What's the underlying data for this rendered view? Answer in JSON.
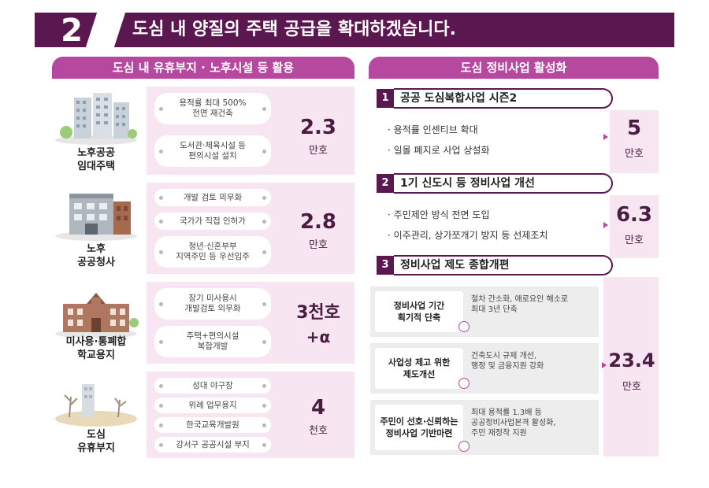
{
  "header": {
    "number": "2",
    "title": "도심 내 양질의 주택 공급을 확대하겠습니다."
  },
  "left": {
    "title": "도심 내 유휴부지 · 노후시설 등 활용",
    "rows": [
      {
        "name": "노후공공\n임대주택",
        "items": [
          "용적률 최대 500%\n전면 재건축",
          "도서관·체육시설 등\n편의시설 설치"
        ],
        "value": "2.3",
        "unit": "만호"
      },
      {
        "name": "노후\n공공청사",
        "items": [
          "개발 검토 의무화",
          "국가가 직접 인허가",
          "청년·신혼부부\n지역주민 등 우선입주"
        ],
        "value": "2.8",
        "unit": "만호"
      },
      {
        "name": "미사용·통폐합\n학교용지",
        "items": [
          "장기 미사용시\n개발검토 의무화",
          "주택+편의시설\n복합개발"
        ],
        "value": "3천호",
        "unit": "+α"
      },
      {
        "name": "도심\n유휴부지",
        "items": [
          "성대 야구장",
          "위례 업무용지",
          "한국교육개발원",
          "강서구 공공시설 부지"
        ],
        "value": "4",
        "unit": "천호"
      }
    ]
  },
  "right": {
    "title": "도심 정비사업 활성화",
    "sections": [
      {
        "num": "1",
        "title": "공공 도심복합사업  시즌2",
        "bullets": [
          "용적률 인센티브 확대",
          "일몰 폐지로 사업 상설화"
        ],
        "value": "5",
        "unit": "만호"
      },
      {
        "num": "2",
        "title": "1기 신도시 등 정비사업  개선",
        "bullets": [
          "주민제안 방식 전면 도입",
          "이주관리, 상가쪼개기 방지 등 선제조치"
        ],
        "value": "6.3",
        "unit": "만호"
      },
      {
        "num": "3",
        "title": "정비사업 제도 종합개편",
        "items": [
          {
            "label": "정비사업 기간\n획기적 단축",
            "desc": "절차 간소화, 애로요인 해소로\n최대 3년 단축"
          },
          {
            "label": "사업성 제고 위한\n제도개선",
            "desc": "건축도시 규제 개선,\n행정 및 금융지원 강화"
          },
          {
            "label": "주민이 선호·신뢰하는\n정비사업 기반마련",
            "desc": "최대 용적률 1.3배 등\n공공정비사업본격 활성화,\n주민 재정착 지원"
          }
        ],
        "value": "23.4",
        "unit": "만호"
      }
    ]
  },
  "colors": {
    "banner": "#5b1850",
    "accent": "#b7489f",
    "panel": "#f7e6f2"
  }
}
